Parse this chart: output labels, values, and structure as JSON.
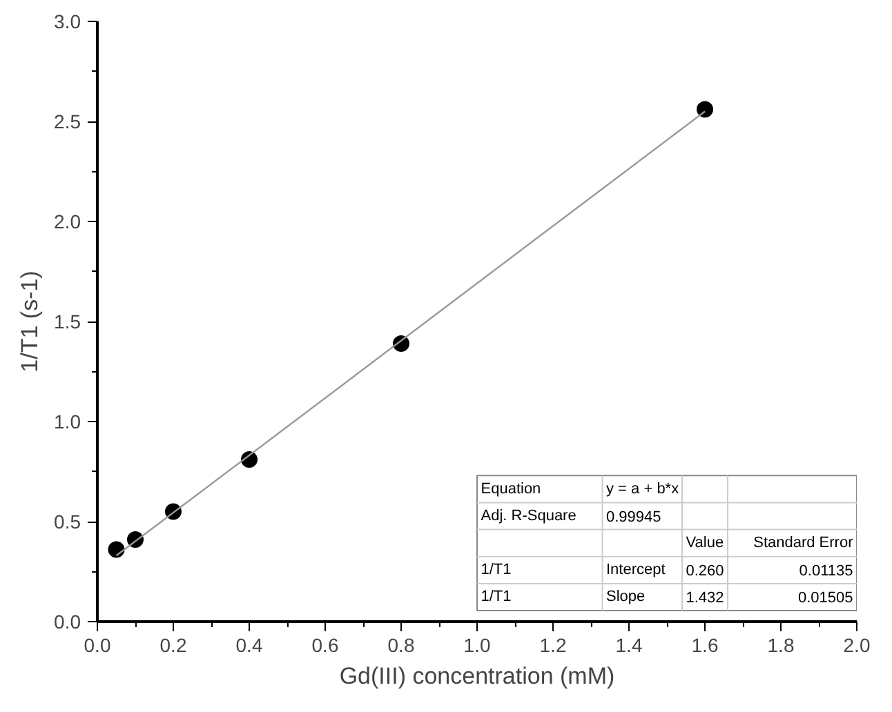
{
  "chart_data": {
    "type": "scatter",
    "xlabel": "Gd(III) concentration (mM)",
    "ylabel": "1/T1 (s-1)",
    "xlim": [
      0.0,
      2.0
    ],
    "ylim": [
      0.0,
      3.0
    ],
    "xticks": [
      "0.0",
      0.2,
      0.4,
      0.6,
      0.8,
      "1.0",
      1.2,
      1.4,
      1.6,
      1.8,
      "2.0"
    ],
    "yticks": [
      "0.0",
      0.5,
      "1.0",
      1.5,
      "2.0",
      2.5,
      "3.0"
    ],
    "grid": false,
    "series": [
      {
        "marker": "circle",
        "color": "#000000",
        "x": [
          0.05,
          0.1,
          0.2,
          0.4,
          0.8,
          1.6
        ],
        "values": [
          0.36,
          0.41,
          0.55,
          0.81,
          1.39,
          2.56
        ]
      },
      {
        "type": "line",
        "color": "#999999",
        "x": [
          0.05,
          1.6
        ],
        "values": [
          0.33,
          2.55
        ]
      }
    ],
    "annotations": [
      "Equation",
      "y = a + b*x",
      "Adj. R-Square",
      "0.99945",
      "Value",
      "Standard Error",
      "1/T1",
      "Intercept",
      "0.260",
      "0.01135",
      "1/T1",
      "Slope",
      "1.432",
      "0.01505"
    ]
  }
}
